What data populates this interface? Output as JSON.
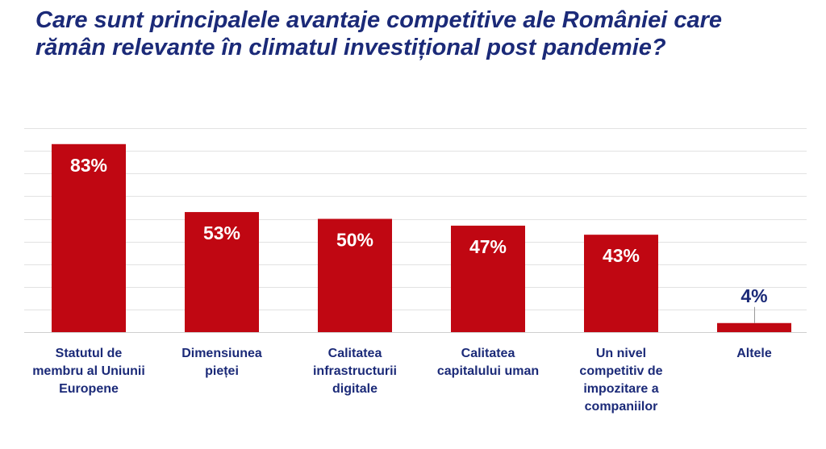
{
  "title_line1": "Care sunt principalele avantaje competitive ale României care",
  "title_line2": "rămân relevante în climatul investițional post pandemie?",
  "colors": {
    "bar": "#c00712",
    "title": "#1b2a78",
    "label_inside": "#ffffff",
    "label_outside": "#1b2a78",
    "gridline": "#e2e2e2",
    "axis": "#cfcfcf"
  },
  "chart_data": {
    "type": "bar",
    "categories": [
      "Statutul de membru al Uniunii Europene",
      "Dimensiunea pieței",
      "Calitatea infrastructurii digitale",
      "Calitatea capitalului uman",
      "Un nivel competitiv de impozitare a companiilor",
      "Altele"
    ],
    "values": [
      83,
      53,
      50,
      47,
      43,
      4
    ],
    "data_labels": [
      "83%",
      "53%",
      "50%",
      "47%",
      "43%",
      "4%"
    ],
    "unit": "%",
    "ylim": [
      0,
      90
    ],
    "grid": true,
    "legend": "none"
  }
}
